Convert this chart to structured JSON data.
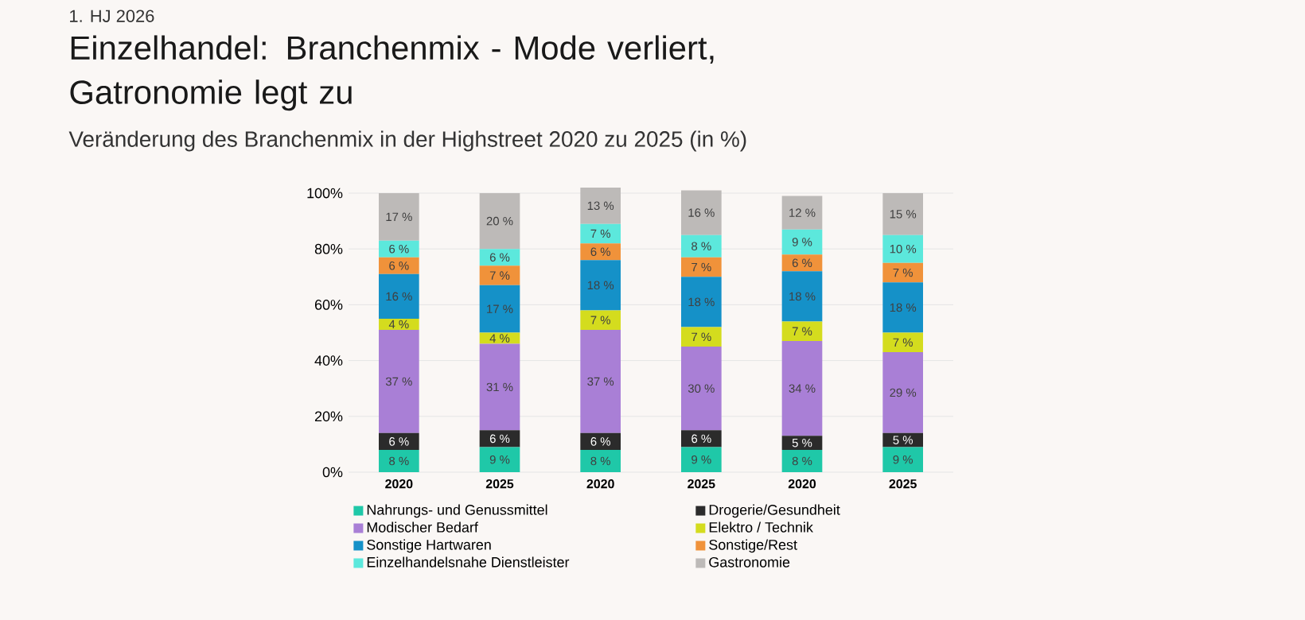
{
  "chart_data": {
    "type": "bar",
    "stacked": true,
    "title": "Einzelhandel: Branchenmix - Mode verliert, Gatronomie legt zu",
    "subtitle": "Veränderung des Branchenmix in der Highstreet 2020 zu 2025 (in %)",
    "annotations": [
      "1. HJ 2026"
    ],
    "categories": [
      "2020",
      "2025",
      "2020",
      "2025",
      "2020",
      "2025"
    ],
    "ylim": [
      0,
      102
    ],
    "yticks": [
      {
        "value": 0,
        "label": "0%"
      },
      {
        "value": 20,
        "label": "20%"
      },
      {
        "value": 40,
        "label": "40%"
      },
      {
        "value": 60,
        "label": "60%"
      },
      {
        "value": 80,
        "label": "80%"
      },
      {
        "value": 100,
        "label": "100%"
      }
    ],
    "grid": "y",
    "legend": "bottom",
    "series": [
      {
        "name": "Nahrungs- und Genussmittel",
        "color": "#1fc8a8",
        "values": [
          8,
          9,
          8,
          9,
          8,
          9
        ],
        "value_labels": [
          "8 %",
          "9 %",
          "8 %",
          "9 %",
          "8 %",
          "9 %"
        ]
      },
      {
        "name": "Drogerie/Gesundheit",
        "color": "#2b2b2b",
        "values": [
          6,
          6,
          6,
          6,
          5,
          5
        ],
        "value_labels": [
          "6 %",
          "6 %",
          "6 %",
          "6 %",
          "5 %",
          "5 %"
        ]
      },
      {
        "name": "Modischer Bedarf",
        "color": "#a97fd6",
        "values": [
          37,
          31,
          37,
          30,
          34,
          29
        ],
        "value_labels": [
          "37 %",
          "31 %",
          "37 %",
          "30 %",
          "34 %",
          "29 %"
        ]
      },
      {
        "name": "Elektro / Technik",
        "color": "#d4dc1e",
        "values": [
          4,
          4,
          7,
          7,
          7,
          7
        ],
        "value_labels": [
          "4 %",
          "4 %",
          "7 %",
          "7 %",
          "7 %",
          "7 %"
        ]
      },
      {
        "name": "Sonstige Hartwaren",
        "color": "#1591c8",
        "values": [
          16,
          17,
          18,
          18,
          18,
          18
        ],
        "value_labels": [
          "16 %",
          "17 %",
          "18 %",
          "18 %",
          "18 %",
          "18 %"
        ]
      },
      {
        "name": "Sonstige/Rest",
        "color": "#f0923a",
        "values": [
          6,
          7,
          6,
          7,
          6,
          7
        ],
        "value_labels": [
          "6 %",
          "7 %",
          "6 %",
          "7 %",
          "6 %",
          "7 %"
        ]
      },
      {
        "name": "Einzelhandelsnahe Dienstleister",
        "color": "#5ce8dc",
        "values": [
          6,
          6,
          7,
          8,
          9,
          10
        ],
        "value_labels": [
          "6 %",
          "6 %",
          "7 %",
          "8 %",
          "9 %",
          "10 %"
        ]
      },
      {
        "name": "Gastronomie",
        "color": "#bdbab8",
        "values": [
          17,
          20,
          13,
          16,
          12,
          15
        ],
        "value_labels": [
          "17 %",
          "20 %",
          "13 %",
          "16 %",
          "12 %",
          "15 %"
        ]
      }
    ]
  }
}
